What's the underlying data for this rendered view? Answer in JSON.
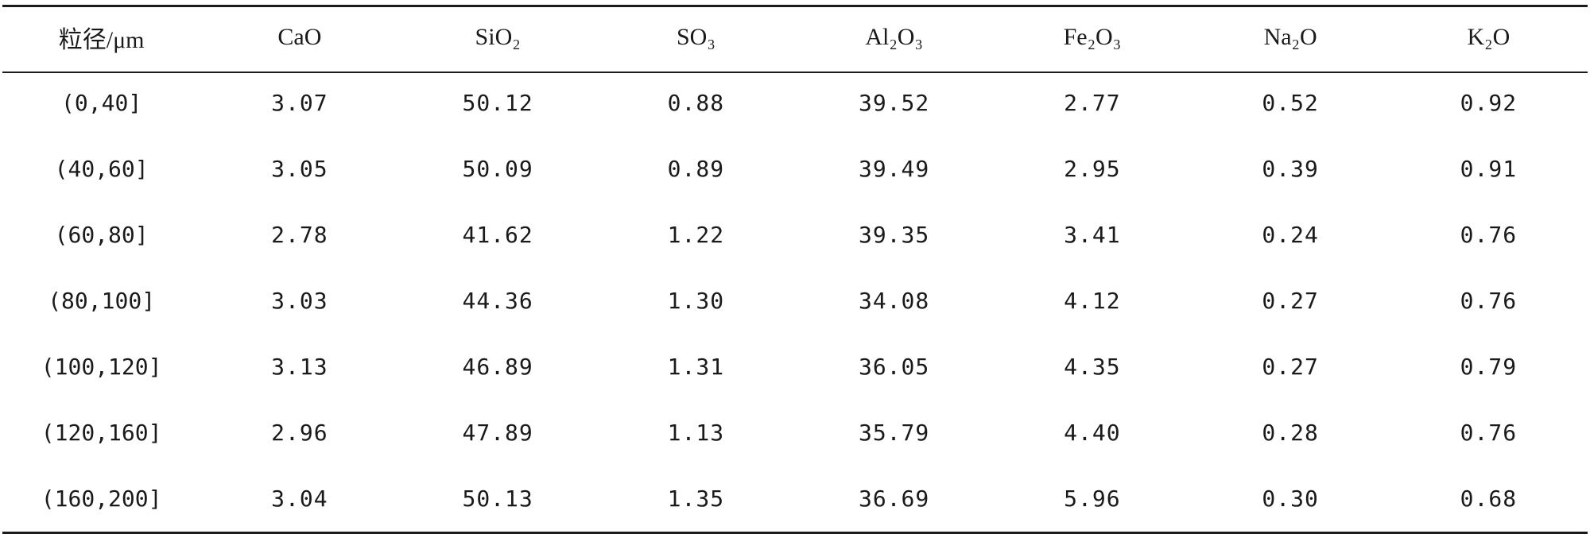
{
  "table": {
    "headers": [
      "粒径/μm",
      "CaO",
      "SiO₂",
      "SO₃",
      "Al₂O₃",
      "Fe₂O₃",
      "Na₂O",
      "K₂O"
    ],
    "rows": [
      [
        "(0,40]",
        "3.07",
        "50.12",
        "0.88",
        "39.52",
        "2.77",
        "0.52",
        "0.92"
      ],
      [
        "(40,60]",
        "3.05",
        "50.09",
        "0.89",
        "39.49",
        "2.95",
        "0.39",
        "0.91"
      ],
      [
        "(60,80]",
        "2.78",
        "41.62",
        "1.22",
        "39.35",
        "3.41",
        "0.24",
        "0.76"
      ],
      [
        "(80,100]",
        "3.03",
        "44.36",
        "1.30",
        "34.08",
        "4.12",
        "0.27",
        "0.76"
      ],
      [
        "(100,120]",
        "3.13",
        "46.89",
        "1.31",
        "36.05",
        "4.35",
        "0.27",
        "0.79"
      ],
      [
        "(120,160]",
        "2.96",
        "47.89",
        "1.13",
        "35.79",
        "4.40",
        "0.28",
        "0.76"
      ],
      [
        "(160,200]",
        "3.04",
        "50.13",
        "1.35",
        "36.69",
        "5.96",
        "0.30",
        "0.68"
      ]
    ]
  }
}
